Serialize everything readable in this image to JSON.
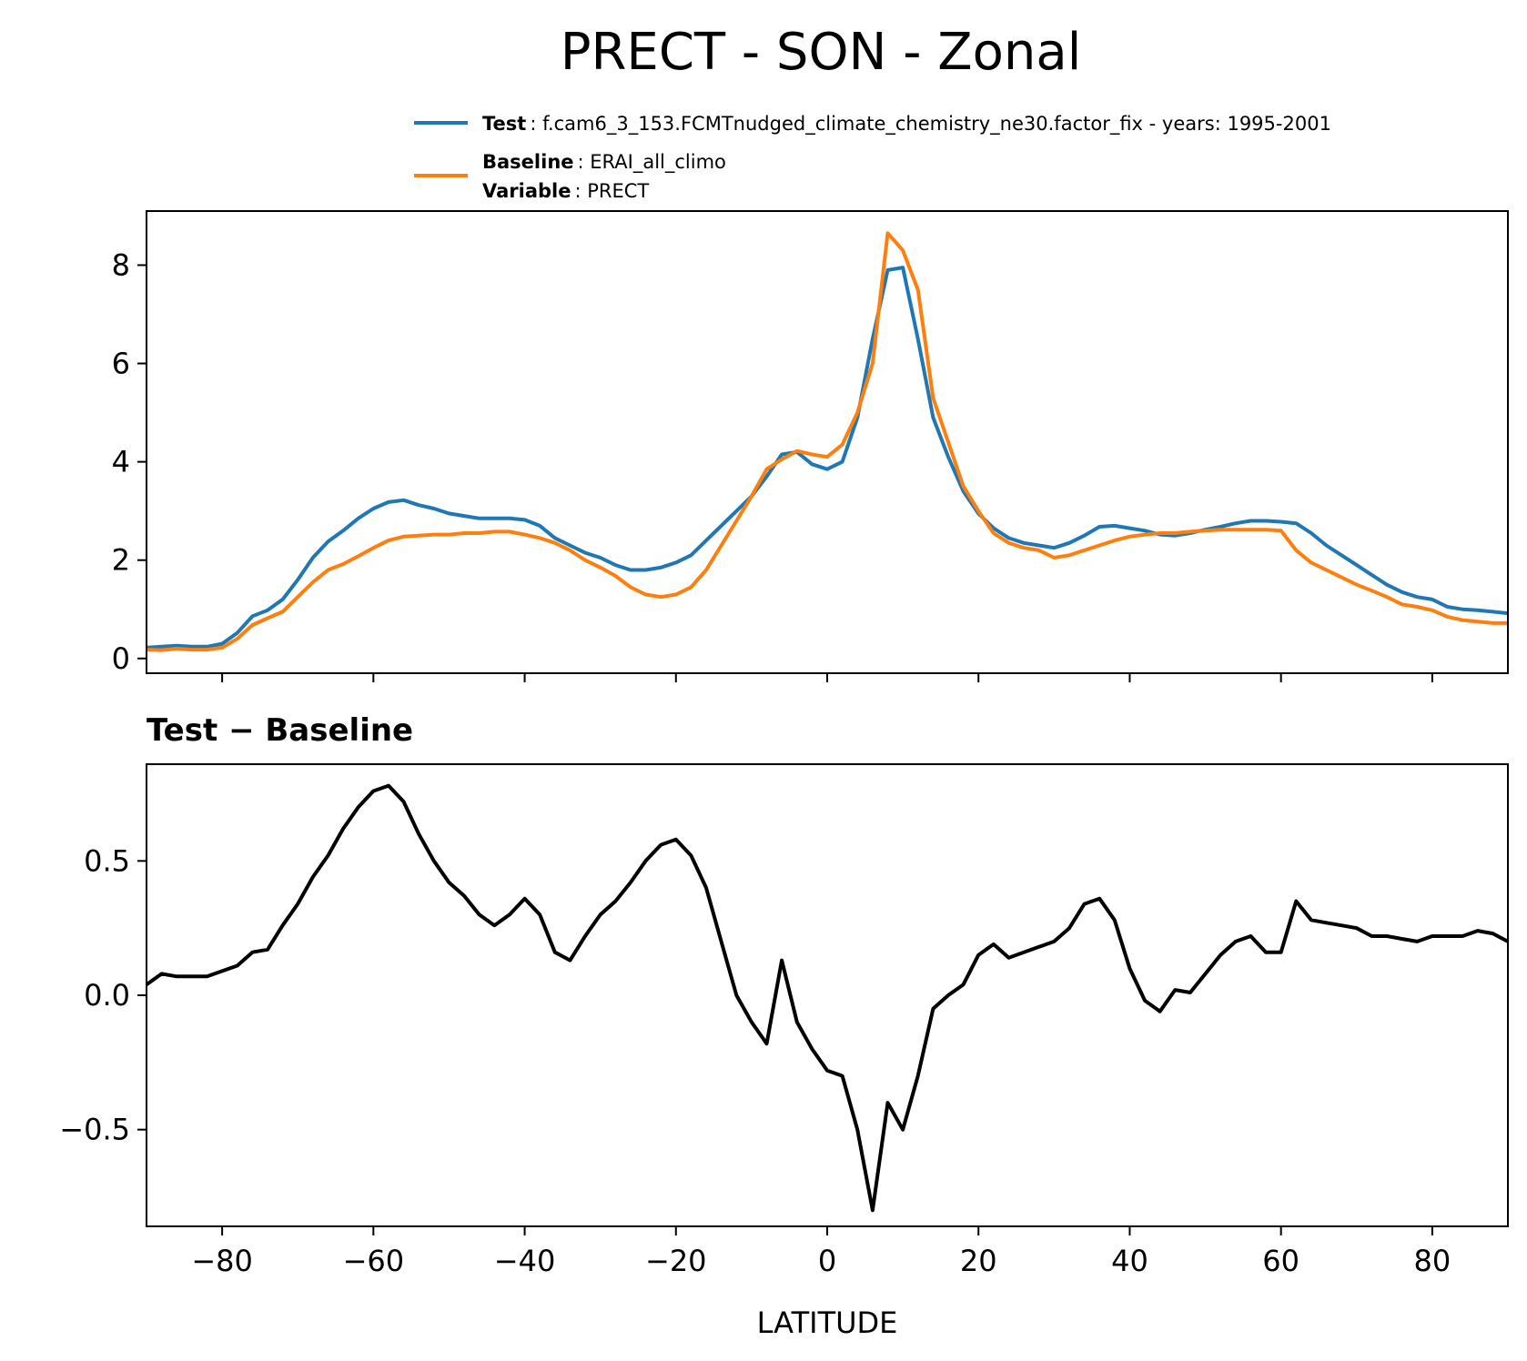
{
  "figure": {
    "title": "PRECT - SON - Zonal",
    "legend": {
      "test_label": "Test",
      "test_text": ": f.cam6_3_153.FCMTnudged_climate_chemistry_ne30.factor_fix - years: 1995-2001",
      "baseline_label": "Baseline",
      "baseline_text": ": ERAI_all_climo",
      "variable_label": "Variable",
      "variable_text": ": PRECT"
    },
    "colors": {
      "test": "#1f77b4",
      "baseline": "#ff7f0e",
      "difference": "#000000"
    },
    "subplot_title": "Test − Baseline"
  },
  "chart_data": [
    {
      "type": "line",
      "title": "",
      "xlabel": "",
      "ylabel": "",
      "xlim": [
        -90,
        90
      ],
      "ylim": [
        -0.3,
        9.1
      ],
      "yticks": [
        0,
        2,
        4,
        6,
        8
      ],
      "ytick_labels": [
        "0",
        "2",
        "4",
        "6",
        "8"
      ],
      "xticks": [
        -80,
        -60,
        -40,
        -20,
        0,
        20,
        40,
        60,
        80
      ],
      "series": [
        {
          "name": "Test",
          "color": "#1f77b4",
          "x": [
            -90,
            -88,
            -86,
            -84,
            -82,
            -80,
            -78,
            -76,
            -74,
            -72,
            -70,
            -68,
            -66,
            -64,
            -62,
            -60,
            -58,
            -56,
            -54,
            -52,
            -50,
            -48,
            -46,
            -44,
            -42,
            -40,
            -38,
            -36,
            -34,
            -32,
            -30,
            -28,
            -26,
            -24,
            -22,
            -20,
            -18,
            -16,
            -14,
            -12,
            -10,
            -8,
            -6,
            -4,
            -2,
            0,
            2,
            4,
            6,
            8,
            10,
            12,
            14,
            16,
            18,
            20,
            22,
            24,
            26,
            28,
            30,
            32,
            34,
            36,
            38,
            40,
            42,
            44,
            46,
            48,
            50,
            52,
            54,
            56,
            58,
            60,
            62,
            64,
            66,
            68,
            70,
            72,
            74,
            76,
            78,
            80,
            82,
            84,
            86,
            88,
            90
          ],
          "values": [
            0.22,
            0.24,
            0.26,
            0.24,
            0.24,
            0.3,
            0.52,
            0.86,
            0.98,
            1.2,
            1.6,
            2.05,
            2.38,
            2.6,
            2.85,
            3.05,
            3.18,
            3.22,
            3.12,
            3.05,
            2.95,
            2.9,
            2.85,
            2.85,
            2.85,
            2.82,
            2.7,
            2.45,
            2.3,
            2.15,
            2.05,
            1.9,
            1.8,
            1.8,
            1.85,
            1.95,
            2.1,
            2.4,
            2.7,
            3.0,
            3.3,
            3.7,
            4.15,
            4.2,
            3.95,
            3.85,
            4.0,
            4.9,
            6.5,
            7.9,
            7.95,
            6.5,
            4.9,
            4.1,
            3.4,
            2.95,
            2.65,
            2.45,
            2.35,
            2.3,
            2.25,
            2.35,
            2.5,
            2.68,
            2.7,
            2.65,
            2.6,
            2.52,
            2.5,
            2.55,
            2.62,
            2.68,
            2.75,
            2.8,
            2.8,
            2.78,
            2.75,
            2.55,
            2.3,
            2.1,
            1.9,
            1.7,
            1.5,
            1.35,
            1.25,
            1.2,
            1.05,
            1.0,
            0.98,
            0.95,
            0.92
          ]
        },
        {
          "name": "Baseline",
          "color": "#ff7f0e",
          "x": [
            -90,
            -88,
            -86,
            -84,
            -82,
            -80,
            -78,
            -76,
            -74,
            -72,
            -70,
            -68,
            -66,
            -64,
            -62,
            -60,
            -58,
            -56,
            -54,
            -52,
            -50,
            -48,
            -46,
            -44,
            -42,
            -40,
            -38,
            -36,
            -34,
            -32,
            -30,
            -28,
            -26,
            -24,
            -22,
            -20,
            -18,
            -16,
            -14,
            -12,
            -10,
            -8,
            -6,
            -4,
            -2,
            0,
            2,
            4,
            6,
            8,
            10,
            12,
            14,
            16,
            18,
            20,
            22,
            24,
            26,
            28,
            30,
            32,
            34,
            36,
            38,
            40,
            42,
            44,
            46,
            48,
            50,
            52,
            54,
            56,
            58,
            60,
            62,
            64,
            66,
            68,
            70,
            72,
            74,
            76,
            78,
            80,
            82,
            84,
            86,
            88,
            90
          ],
          "values": [
            0.18,
            0.17,
            0.2,
            0.18,
            0.18,
            0.22,
            0.4,
            0.68,
            0.82,
            0.95,
            1.25,
            1.55,
            1.8,
            1.92,
            2.08,
            2.25,
            2.4,
            2.48,
            2.5,
            2.52,
            2.52,
            2.55,
            2.55,
            2.58,
            2.58,
            2.52,
            2.45,
            2.35,
            2.2,
            2.0,
            1.85,
            1.68,
            1.45,
            1.3,
            1.25,
            1.3,
            1.45,
            1.8,
            2.3,
            2.8,
            3.3,
            3.85,
            4.05,
            4.22,
            4.15,
            4.1,
            4.35,
            5.0,
            6.0,
            8.65,
            8.3,
            7.5,
            5.3,
            4.4,
            3.5,
            3.0,
            2.55,
            2.35,
            2.25,
            2.2,
            2.05,
            2.1,
            2.2,
            2.3,
            2.4,
            2.48,
            2.52,
            2.55,
            2.55,
            2.58,
            2.6,
            2.62,
            2.62,
            2.62,
            2.62,
            2.6,
            2.2,
            1.95,
            1.8,
            1.65,
            1.5,
            1.38,
            1.25,
            1.1,
            1.05,
            0.98,
            0.85,
            0.78,
            0.75,
            0.72,
            0.72
          ]
        }
      ]
    },
    {
      "type": "line",
      "title": "Test − Baseline",
      "xlabel": "LATITUDE",
      "ylabel": "",
      "xlim": [
        -90,
        90
      ],
      "ylim": [
        -0.86,
        0.86
      ],
      "yticks": [
        -0.5,
        0.0,
        0.5
      ],
      "ytick_labels": [
        "−0.5",
        "0.0",
        "0.5"
      ],
      "xticks": [
        -80,
        -60,
        -40,
        -20,
        0,
        20,
        40,
        60,
        80
      ],
      "xtick_labels": [
        "−80",
        "−60",
        "−40",
        "−20",
        "0",
        "20",
        "40",
        "60",
        "80"
      ],
      "series": [
        {
          "name": "Test − Baseline",
          "color": "#000000",
          "x": [
            -90,
            -88,
            -86,
            -84,
            -82,
            -80,
            -78,
            -76,
            -74,
            -72,
            -70,
            -68,
            -66,
            -64,
            -62,
            -60,
            -58,
            -56,
            -54,
            -52,
            -50,
            -48,
            -46,
            -44,
            -42,
            -40,
            -38,
            -36,
            -34,
            -32,
            -30,
            -28,
            -26,
            -24,
            -22,
            -20,
            -18,
            -16,
            -14,
            -12,
            -10,
            -8,
            -6,
            -4,
            -2,
            0,
            2,
            4,
            6,
            8,
            10,
            12,
            14,
            16,
            18,
            20,
            22,
            24,
            26,
            28,
            30,
            32,
            34,
            36,
            38,
            40,
            42,
            44,
            46,
            48,
            50,
            52,
            54,
            56,
            58,
            60,
            62,
            64,
            66,
            68,
            70,
            72,
            74,
            76,
            78,
            80,
            82,
            84,
            86,
            88,
            90
          ],
          "values": [
            0.04,
            0.08,
            0.07,
            0.07,
            0.07,
            0.09,
            0.11,
            0.16,
            0.17,
            0.26,
            0.34,
            0.44,
            0.52,
            0.62,
            0.7,
            0.76,
            0.78,
            0.72,
            0.6,
            0.5,
            0.42,
            0.37,
            0.3,
            0.26,
            0.3,
            0.36,
            0.3,
            0.16,
            0.13,
            0.22,
            0.3,
            0.35,
            0.42,
            0.5,
            0.56,
            0.58,
            0.52,
            0.4,
            0.2,
            0.0,
            -0.1,
            -0.18,
            0.13,
            -0.1,
            -0.2,
            -0.28,
            -0.3,
            -0.5,
            -0.8,
            -0.4,
            -0.5,
            -0.3,
            -0.05,
            0.0,
            0.04,
            0.15,
            0.19,
            0.14,
            0.16,
            0.18,
            0.2,
            0.25,
            0.34,
            0.36,
            0.28,
            0.1,
            -0.02,
            -0.06,
            0.02,
            0.01,
            0.08,
            0.15,
            0.2,
            0.22,
            0.16,
            0.16,
            0.35,
            0.28,
            0.27,
            0.26,
            0.25,
            0.22,
            0.22,
            0.21,
            0.2,
            0.22,
            0.22,
            0.22,
            0.24,
            0.23,
            0.2
          ]
        }
      ]
    }
  ]
}
